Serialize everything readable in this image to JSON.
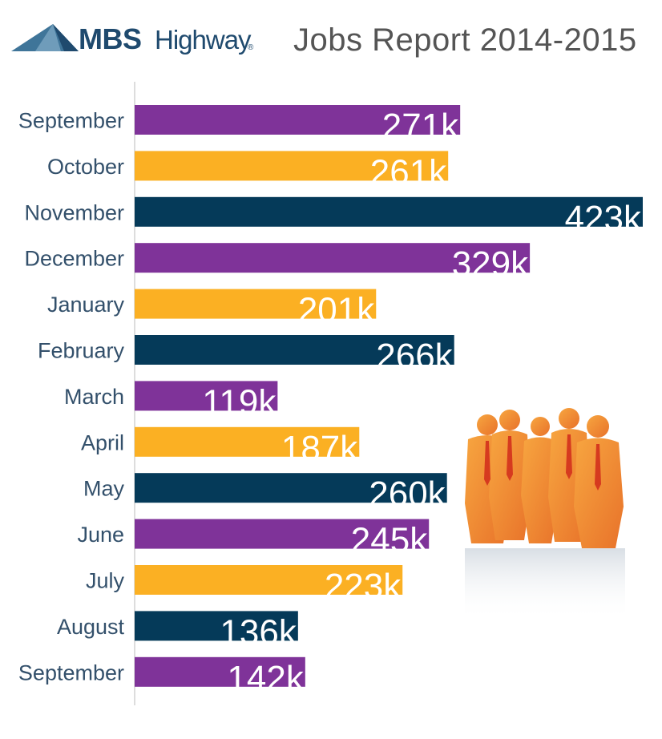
{
  "header": {
    "brand_bold": "MBS",
    "brand_light": "Highway",
    "brand_reg": "®",
    "title": "Jobs Report 2014-2015"
  },
  "colors": {
    "purple": "#7f3399",
    "orange": "#fbb023",
    "navy": "#053a59",
    "axis": "#bbbbbb"
  },
  "chart_data": {
    "type": "bar",
    "orientation": "horizontal",
    "title": "Jobs Report 2014-2015",
    "categories": [
      "September",
      "October",
      "November",
      "December",
      "January",
      "February",
      "March",
      "April",
      "May",
      "June",
      "July",
      "August",
      "September"
    ],
    "values": [
      271,
      261,
      423,
      329,
      201,
      266,
      119,
      187,
      260,
      245,
      223,
      136,
      142
    ],
    "value_labels": [
      "271k",
      "261k",
      "423k",
      "329k",
      "201k",
      "266k",
      "119k",
      "187k",
      "260k",
      "245k",
      "223k",
      "136k",
      "142k"
    ],
    "bar_colors": [
      "purple",
      "orange",
      "navy",
      "purple",
      "orange",
      "navy",
      "purple",
      "orange",
      "navy",
      "purple",
      "orange",
      "navy",
      "purple"
    ],
    "xlim": [
      0,
      423
    ],
    "grid": false,
    "legend": "none"
  }
}
